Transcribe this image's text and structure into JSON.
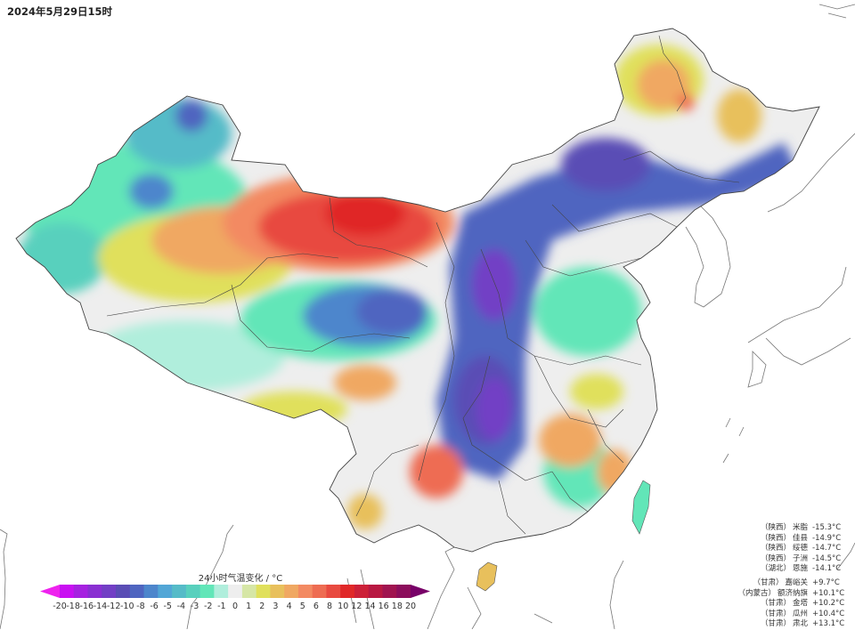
{
  "header": {
    "title": "2024年5月29日15时"
  },
  "map": {
    "subject": "24-hour temperature change over China",
    "region": "China",
    "legend": {
      "title": "24小时气温变化 / °C",
      "unit": "°C",
      "ticks": [
        "-20",
        "-18",
        "-16",
        "-14",
        "-12",
        "-10",
        "-8",
        "-6",
        "-5",
        "-4",
        "-3",
        "-2",
        "-1",
        "0",
        "1",
        "2",
        "3",
        "4",
        "5",
        "6",
        "8",
        "10",
        "12",
        "14",
        "16",
        "18",
        "20"
      ],
      "bins": [
        {
          "from": -20,
          "to": -18,
          "color": "#c90ff2"
        },
        {
          "from": -18,
          "to": -16,
          "color": "#a622e0"
        },
        {
          "from": -16,
          "to": -14,
          "color": "#8a30d2"
        },
        {
          "from": -14,
          "to": -12,
          "color": "#723fc5"
        },
        {
          "from": -12,
          "to": -10,
          "color": "#5a4db5"
        },
        {
          "from": -10,
          "to": -8,
          "color": "#4f65c0"
        },
        {
          "from": -8,
          "to": -6,
          "color": "#4d86cc"
        },
        {
          "from": -6,
          "to": -5,
          "color": "#52a6d6"
        },
        {
          "from": -5,
          "to": -4,
          "color": "#55bbc8"
        },
        {
          "from": -4,
          "to": -3,
          "color": "#58d0bd"
        },
        {
          "from": -3,
          "to": -2,
          "color": "#62e6b8"
        },
        {
          "from": -2,
          "to": -1,
          "color": "#b0eedc"
        },
        {
          "from": -1,
          "to": 1,
          "color": "#eeeeee"
        },
        {
          "from": 1,
          "to": 2,
          "color": "#d6e6a6"
        },
        {
          "from": 2,
          "to": 3,
          "color": "#e0e05c"
        },
        {
          "from": 3,
          "to": 4,
          "color": "#e8c05c"
        },
        {
          "from": 4,
          "to": 5,
          "color": "#f0a862"
        },
        {
          "from": 5,
          "to": 6,
          "color": "#f38a62"
        },
        {
          "from": 6,
          "to": 8,
          "color": "#ee6c52"
        },
        {
          "from": 8,
          "to": 10,
          "color": "#e84a40"
        },
        {
          "from": 10,
          "to": 12,
          "color": "#e02828"
        },
        {
          "from": 12,
          "to": 14,
          "color": "#cc2038"
        },
        {
          "from": 14,
          "to": 16,
          "color": "#b81842"
        },
        {
          "from": 16,
          "to": 18,
          "color": "#a01450"
        },
        {
          "from": 18,
          "to": 20,
          "color": "#8c0e5c"
        }
      ],
      "under_color": "#ee22ee",
      "over_color": "#780068"
    },
    "regions_highlight": [
      {
        "area": "Inner Mongolia west / Gansu Hexi",
        "change": "+8 to +12°C",
        "color": "#e02828"
      },
      {
        "area": "Shaanxi / Shanxi / Hubei west",
        "change": "-12 to -16°C",
        "color": "#723fc5"
      },
      {
        "area": "Inner Mongolia east",
        "change": "-12 to -14°C",
        "color": "#723fc5"
      },
      {
        "area": "Southern Xinjiang",
        "change": "+2 to +6°C",
        "color": "#e8c05c"
      },
      {
        "area": "Northern Xinjiang",
        "change": "-3 to -8°C",
        "color": "#58d0bd"
      }
    ]
  },
  "stations": {
    "coldest": [
      {
        "province": "（陕西）",
        "name": "米脂",
        "value": "-15.3°C"
      },
      {
        "province": "（陕西）",
        "name": "佳县",
        "value": "-14.9°C"
      },
      {
        "province": "（陕西）",
        "name": "绥德",
        "value": "-14.7°C"
      },
      {
        "province": "（陕西）",
        "name": "子洲",
        "value": "-14.5°C"
      },
      {
        "province": "（湖北）",
        "name": "恩施",
        "value": "-14.1°C"
      }
    ],
    "warmest": [
      {
        "province": "（甘肃）",
        "name": "嘉峪关",
        "value": "+9.7°C"
      },
      {
        "province": "（内蒙古）",
        "name": "额济纳旗",
        "value": "+10.1°C"
      },
      {
        "province": "（甘肃）",
        "name": "金塔",
        "value": "+10.2°C"
      },
      {
        "province": "（甘肃）",
        "name": "瓜州",
        "value": "+10.4°C"
      },
      {
        "province": "（甘肃）",
        "name": "肃北",
        "value": "+13.1°C"
      }
    ]
  }
}
